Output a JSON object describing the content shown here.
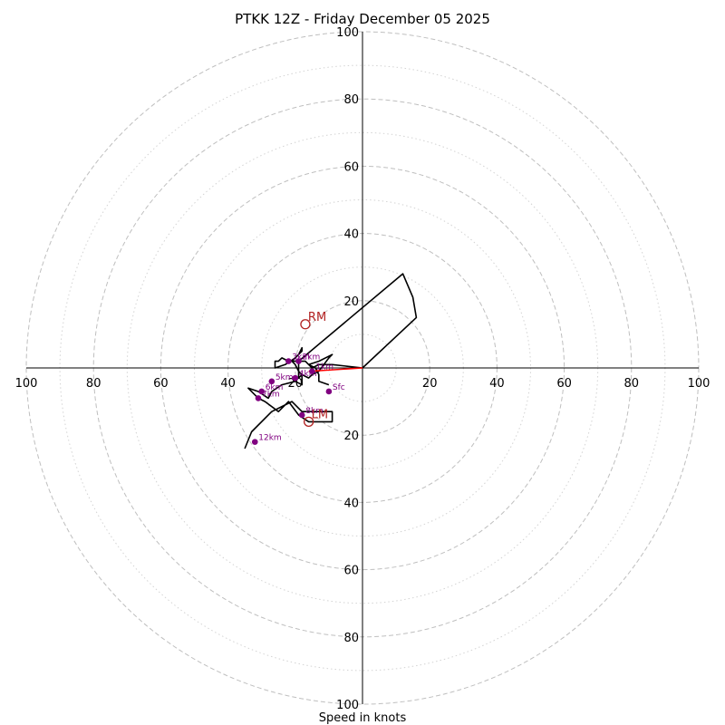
{
  "chart_data": {
    "type": "line",
    "title": "PTKK 12Z - Friday December 05 2025",
    "xlabel": "Speed in knots",
    "speed_max": 100,
    "ring_major": [
      20,
      40,
      60,
      80,
      100
    ],
    "ring_minor": [
      10,
      30,
      50,
      70,
      90
    ],
    "axis_ticks": {
      "top": [
        "20",
        "40",
        "60",
        "80",
        "100"
      ],
      "bottom": [
        "20",
        "40",
        "60",
        "80",
        "100"
      ],
      "left": [
        "20",
        "40",
        "60",
        "80",
        "100"
      ],
      "right": [
        "20",
        "40",
        "60",
        "80",
        "100"
      ]
    },
    "grid": true,
    "series": [
      {
        "color": "#000000",
        "points": [
          [
            -10,
            -5
          ],
          [
            -13,
            -4
          ],
          [
            -13,
            -2
          ],
          [
            -14,
            0
          ],
          [
            -16,
            1
          ],
          [
            -17,
            2
          ],
          [
            -19,
            2
          ],
          [
            -22,
            2
          ],
          [
            -24,
            3
          ],
          [
            -25,
            2
          ],
          [
            -26,
            2
          ],
          [
            -26,
            0
          ],
          [
            -23,
            1
          ],
          [
            -20,
            3
          ],
          [
            -18,
            5
          ],
          [
            -18,
            6
          ],
          [
            -19,
            4
          ],
          [
            -21,
            2
          ],
          [
            -20,
            1
          ],
          [
            -19,
            -1
          ],
          [
            -18,
            -2
          ],
          [
            -16,
            -3
          ],
          [
            -15,
            -2
          ],
          [
            -13,
            -1
          ],
          [
            -10,
            3
          ],
          [
            -9,
            4
          ],
          [
            -13,
            2
          ],
          [
            -16,
            1
          ],
          [
            -15,
            0
          ],
          [
            -13,
            1
          ],
          [
            -9,
            1
          ],
          [
            0,
            0
          ],
          [
            16,
            15
          ],
          [
            15,
            21
          ],
          [
            12,
            28
          ],
          [
            -19,
            2
          ],
          [
            -19,
            -3
          ],
          [
            -18,
            -2
          ],
          [
            -18,
            -5
          ],
          [
            -20,
            -4
          ],
          [
            -24,
            -5
          ],
          [
            -27,
            -7
          ],
          [
            -28,
            -9
          ],
          [
            -31,
            -7
          ],
          [
            -34,
            -6
          ],
          [
            -31,
            -9
          ],
          [
            -29,
            -10
          ],
          [
            -25,
            -13
          ],
          [
            -22,
            -10
          ],
          [
            -19,
            -14
          ],
          [
            -16,
            -16
          ],
          [
            -9,
            -16
          ],
          [
            -9,
            -13
          ],
          [
            -18,
            -13
          ],
          [
            -21,
            -10
          ],
          [
            -27,
            -13
          ],
          [
            -33,
            -19
          ],
          [
            -35,
            -24
          ]
        ]
      }
    ],
    "heights": [
      {
        "label": "Sfc",
        "u": -10,
        "v": -7
      },
      {
        "label": "1km",
        "u": -15,
        "v": -1
      },
      {
        "label": "2km",
        "u": -19,
        "v": 2
      },
      {
        "label": "3km",
        "u": -22,
        "v": 2
      },
      {
        "label": "4km",
        "u": -20,
        "v": -3
      },
      {
        "label": "5km",
        "u": -27,
        "v": -4
      },
      {
        "label": "6km",
        "u": -30,
        "v": -7
      },
      {
        "label": "7km",
        "u": -31,
        "v": -9
      },
      {
        "label": "8km",
        "u": -18,
        "v": -14
      },
      {
        "label": "12km",
        "u": -32,
        "v": -22
      }
    ],
    "motion_vector": {
      "color": "#ff0000",
      "from": [
        0,
        0
      ],
      "to": [
        -16,
        -1
      ]
    },
    "storm_motion": [
      {
        "label": "RM",
        "u": -17,
        "v": 13,
        "color": "#b22222"
      },
      {
        "label": "LM",
        "u": -16,
        "v": -16,
        "color": "#b22222"
      }
    ],
    "colors": {
      "hodograph": "#000000",
      "height_markers": "#800080",
      "storm_motion": "#b22222",
      "vector": "#ff0000",
      "ring_major": "#bfbfbf",
      "ring_minor": "#d3d3d3"
    }
  }
}
